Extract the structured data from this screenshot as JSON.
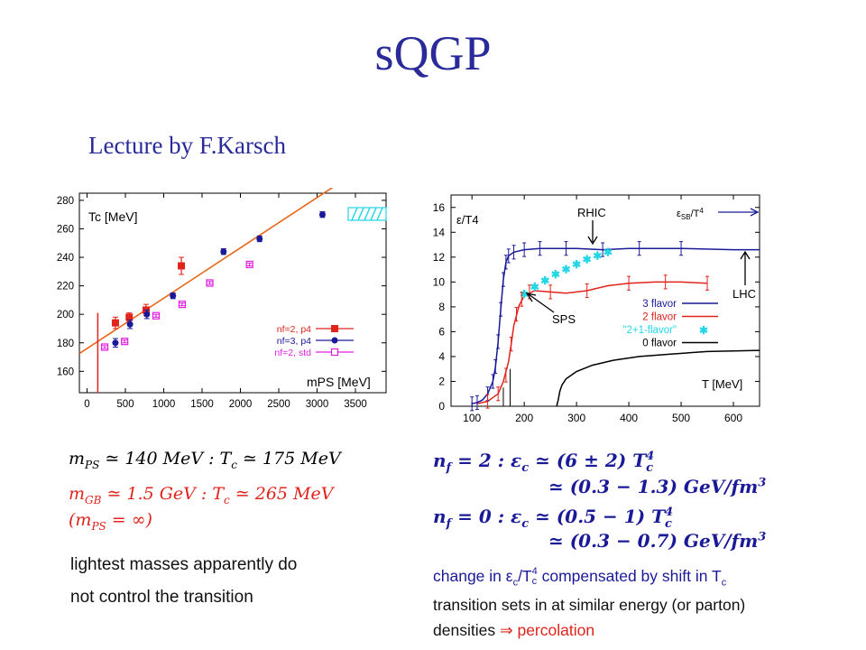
{
  "slide": {
    "title": "sQGP",
    "subtitle": "Lecture by F.Karsch"
  },
  "colors": {
    "title": "#2a2a9a",
    "red": "#e0241c",
    "blue": "#1a1a99",
    "orange": "#e8661a",
    "magenta": "#e020e0",
    "cyan": "#22d6e6"
  },
  "chart_data": [
    {
      "type": "scatter",
      "title": "",
      "xlabel": "m_PS [MeV]",
      "ylabel": "T_c [MeV]",
      "xlim": [
        -100,
        3900
      ],
      "ylim": [
        145,
        285
      ],
      "xticks": [
        0,
        500,
        1000,
        1500,
        2000,
        2500,
        3000,
        3500
      ],
      "yticks": [
        160,
        180,
        200,
        220,
        240,
        260,
        280
      ],
      "legend_position": "bottom-right",
      "labels": {
        "ylabel": "Tc [MeV]",
        "xlabel": "mPS [MeV]"
      },
      "series": [
        {
          "name": "nf=2, p4",
          "color": "#e0241c",
          "marker": "filled-square",
          "points": [
            [
              370,
              194,
              4
            ],
            [
              550,
              198,
              3
            ],
            [
              770,
              203,
              4
            ],
            [
              1230,
              234,
              6
            ]
          ]
        },
        {
          "name": "nf=3, p4",
          "color": "#1a1a99",
          "marker": "filled-circle",
          "points": [
            [
              370,
              180,
              3
            ],
            [
              560,
              193,
              3
            ],
            [
              780,
              200,
              3
            ],
            [
              1120,
              213,
              2
            ],
            [
              1780,
              244,
              2
            ],
            [
              2250,
              253,
              2
            ],
            [
              3070,
              270,
              2
            ]
          ]
        },
        {
          "name": "nf=2, std",
          "color": "#e020e0",
          "marker": "open-square",
          "points": [
            [
              230,
              177,
              1
            ],
            [
              490,
              181,
              1
            ],
            [
              900,
              199,
              1
            ],
            [
              1240,
              207,
              1
            ],
            [
              1600,
              222,
              1
            ],
            [
              2120,
              235,
              1
            ]
          ]
        }
      ],
      "fit_line": {
        "color": "#e8661a",
        "x": [
          -100,
          3200
        ],
        "y": [
          172.5,
          289
        ]
      },
      "vertical_line": {
        "color": "#e0241c",
        "x": 140
      }
    },
    {
      "type": "line",
      "title": "",
      "xlabel": "T [MeV]",
      "ylabel": "ε/T⁴",
      "xlim": [
        60,
        650
      ],
      "ylim": [
        0,
        17
      ],
      "xticks": [
        100,
        200,
        300,
        400,
        500,
        600
      ],
      "yticks": [
        0,
        2,
        4,
        6,
        8,
        10,
        12,
        14,
        16
      ],
      "legend_position": "right",
      "labels": {
        "ylabel": "ε/T4",
        "xlabel": "T [MeV]",
        "sb": "εSB/T4"
      },
      "annotations": [
        "RHIC",
        "LHC",
        "SPS"
      ],
      "series": [
        {
          "name": "3 flavor",
          "color": "#1a1a99",
          "x": [
            100,
            110,
            120,
            130,
            140,
            145,
            150,
            155,
            160,
            165,
            170,
            180,
            200,
            230,
            260,
            300,
            350,
            400,
            500,
            600,
            650
          ],
          "y": [
            0.2,
            0.3,
            0.5,
            1.0,
            2.0,
            3.2,
            5.2,
            7.8,
            10.2,
            11.6,
            12.1,
            12.4,
            12.6,
            12.7,
            12.7,
            12.7,
            12.6,
            12.7,
            12.7,
            12.6,
            12.6
          ]
        },
        {
          "name": "2 flavor",
          "color": "#e0241c",
          "x": [
            110,
            130,
            150,
            160,
            170,
            175,
            180,
            190,
            200,
            220,
            250,
            280,
            320,
            360,
            400,
            450,
            500,
            550
          ],
          "y": [
            0.2,
            0.4,
            1.0,
            2.0,
            3.6,
            5.0,
            6.5,
            8.1,
            8.9,
            9.3,
            9.2,
            9.1,
            9.3,
            9.7,
            9.9,
            10.0,
            10.0,
            9.9
          ]
        },
        {
          "name": "\"2+1-flavor\"",
          "color": "#22d6e6",
          "x": [
            200,
            220,
            240,
            260,
            280,
            300,
            320,
            340,
            360
          ],
          "y": [
            9.0,
            9.6,
            10.1,
            10.6,
            11.0,
            11.4,
            11.8,
            12.1,
            12.4
          ]
        },
        {
          "name": "0 flavor",
          "color": "#000000",
          "x": [
            262,
            265,
            268,
            272,
            280,
            300,
            330,
            370,
            420,
            480,
            550,
            650
          ],
          "y": [
            0,
            0.5,
            1.2,
            1.7,
            2.2,
            2.8,
            3.3,
            3.7,
            4.0,
            4.2,
            4.4,
            4.5
          ]
        }
      ],
      "error_bars": {
        "3 flavor": [
          [
            100,
            0.2
          ],
          [
            110,
            0.3
          ],
          [
            130,
            1.0
          ],
          [
            140,
            2.0
          ],
          [
            145,
            3.2
          ],
          [
            150,
            5.2
          ],
          [
            155,
            7.8
          ],
          [
            160,
            10.2
          ],
          [
            165,
            11.6
          ],
          [
            170,
            12.1
          ],
          [
            180,
            12.4
          ],
          [
            200,
            12.6
          ],
          [
            230,
            12.7
          ],
          [
            280,
            12.7
          ],
          [
            350,
            12.6
          ],
          [
            420,
            12.7
          ],
          [
            500,
            12.7
          ]
        ],
        "2 flavor": [
          [
            130,
            0.4
          ],
          [
            150,
            1.0
          ],
          [
            165,
            2.5
          ],
          [
            175,
            5.0
          ],
          [
            185,
            7.4
          ],
          [
            195,
            8.6
          ],
          [
            210,
            9.2
          ],
          [
            250,
            9.2
          ],
          [
            320,
            9.3
          ],
          [
            400,
            9.9
          ],
          [
            470,
            10.0
          ],
          [
            550,
            9.9
          ]
        ]
      }
    }
  ],
  "equations": {
    "left_1": "m",
    "left_1_sub": "PS",
    "left_1_rest": " ≃ 140 MeV :   T",
    "left_1_sub2": "c",
    "left_1_end": " ≃ 175 MeV",
    "left_2": "m",
    "left_2_sub": "GB",
    "left_2_rest": " ≃ 1.5 GeV :   T",
    "left_2_sub2": "c",
    "left_2_end": " ≃ 265 MeV",
    "left_3": "(m",
    "left_3_sub": "PS",
    "left_3_end": " = ∞)",
    "right_1_a": "n",
    "right_1_sub": "f",
    "right_1_b": " = 2 :   ε",
    "right_1_sub2": "c",
    "right_1_c": " ≃ (6 ± 2) T",
    "right_1_sup": "4",
    "right_1_sub3": "c",
    "right_2_a": "≃ (0.3 − 1.3) GeV/fm",
    "right_2_sup": "3",
    "right_3_a": "n",
    "right_3_sub": "f",
    "right_3_b": " = 0 :   ε",
    "right_3_sub2": "c",
    "right_3_c": " ≃ (0.5 − 1) T",
    "right_3_sup": "4",
    "right_3_sub3": "c",
    "right_4_a": "≃ (0.3 − 0.7) GeV/fm",
    "right_4_sup": "3"
  },
  "notes": {
    "left_1": "lightest masses apparently do",
    "left_2": "not control the transition",
    "right_1_a": "change in ε",
    "right_1_sub": "c",
    "right_1_b": "/T",
    "right_1_sup": "4",
    "right_1_sub2": "c",
    "right_1_c": " compensated by shift in T",
    "right_1_sub3": "c",
    "right_2": "transition sets in at similar energy (or parton)",
    "right_3_a": "densities  ",
    "right_3_arrow": "⇒",
    "right_3_b": " percolation"
  }
}
